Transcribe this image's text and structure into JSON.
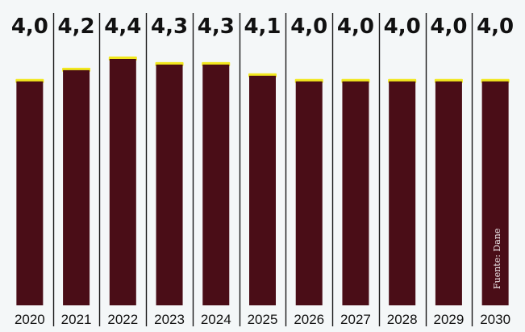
{
  "chart_data": {
    "type": "bar",
    "title": "",
    "xlabel": "",
    "ylabel": "",
    "categories": [
      "2020",
      "2021",
      "2022",
      "2023",
      "2024",
      "2025",
      "2026",
      "2027",
      "2028",
      "2029",
      "2030"
    ],
    "values": [
      4.0,
      4.2,
      4.4,
      4.3,
      4.3,
      4.1,
      4.0,
      4.0,
      4.0,
      4.0,
      4.0
    ],
    "value_labels": [
      "4,0",
      "4,2",
      "4,4",
      "4,3",
      "4,3",
      "4,1",
      "4,0",
      "4,0",
      "4,0",
      "4,0",
      "4,0"
    ],
    "ylim": [
      0,
      4.4
    ],
    "grid": false,
    "legend": "none",
    "source": "Fuente: Dane",
    "colors": {
      "bar": "#4a0d17",
      "bar_highlight": "#f2e81e",
      "divider": "#1a1a1a",
      "text": "#111111",
      "source_text": "#f3eef0",
      "background": "#f4f7f8"
    }
  }
}
